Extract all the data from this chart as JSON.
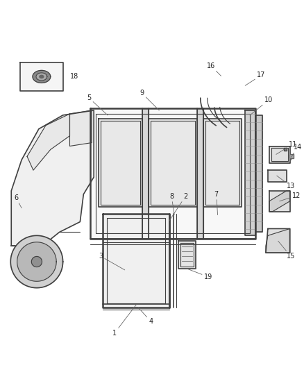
{
  "background_color": "#ffffff",
  "line_color": "#404040",
  "label_color": "#222222",
  "fig_width": 4.38,
  "fig_height": 5.33,
  "dpi": 100,
  "label_fontsize": 7.0
}
